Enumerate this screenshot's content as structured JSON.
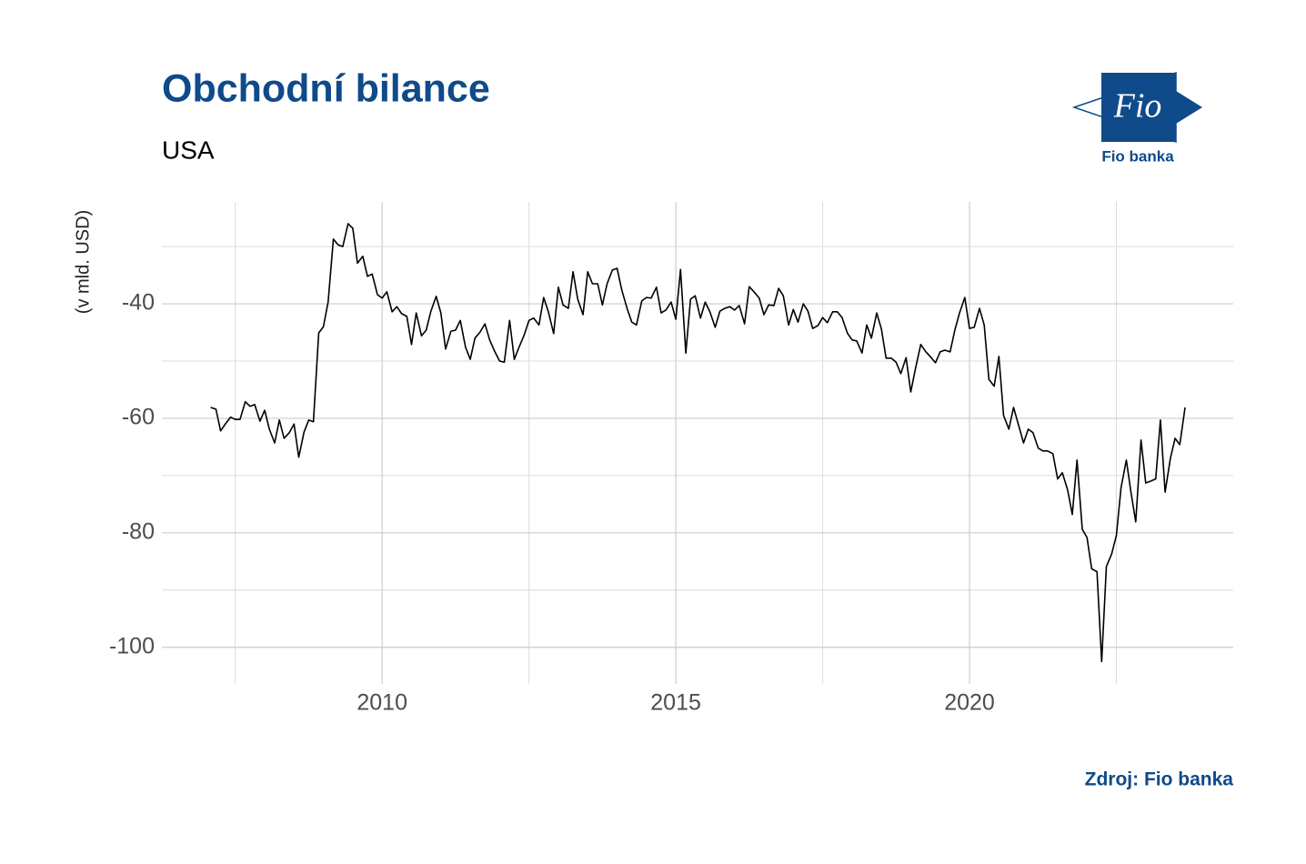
{
  "chart_data": {
    "type": "line",
    "title": "Obchodní bilance",
    "subtitle": "USA",
    "ylabel": "(v mld. USD)",
    "source": "Zdroj: Fio banka",
    "logo": {
      "mark": "Fio",
      "name": "Fio banka"
    },
    "color": "#000000",
    "grid": true,
    "xlim": [
      2006.25,
      2024.49
    ],
    "ylim": [
      -106.4,
      -22.2
    ],
    "xticks": [
      2010,
      2015,
      2020
    ],
    "yticks": [
      -100,
      -80,
      -60,
      -40
    ],
    "x_minor_grid": [
      2007.5,
      2012.5,
      2017.5,
      2022.5
    ],
    "y_minor_grid": [
      -90,
      -70,
      -50,
      -30
    ],
    "x": [
      2007.08,
      2007.17,
      2007.25,
      2007.33,
      2007.42,
      2007.5,
      2007.58,
      2007.67,
      2007.75,
      2007.83,
      2007.92,
      2008.0,
      2008.08,
      2008.17,
      2008.25,
      2008.33,
      2008.42,
      2008.5,
      2008.58,
      2008.67,
      2008.75,
      2008.83,
      2008.92,
      2009.0,
      2009.08,
      2009.17,
      2009.25,
      2009.33,
      2009.42,
      2009.5,
      2009.58,
      2009.67,
      2009.75,
      2009.83,
      2009.92,
      2010.0,
      2010.08,
      2010.17,
      2010.25,
      2010.33,
      2010.42,
      2010.5,
      2010.58,
      2010.67,
      2010.75,
      2010.83,
      2010.92,
      2011.0,
      2011.08,
      2011.17,
      2011.25,
      2011.33,
      2011.42,
      2011.5,
      2011.58,
      2011.67,
      2011.75,
      2011.83,
      2011.92,
      2012.0,
      2012.08,
      2012.17,
      2012.25,
      2012.33,
      2012.42,
      2012.5,
      2012.58,
      2012.67,
      2012.75,
      2012.83,
      2012.92,
      2013.0,
      2013.08,
      2013.17,
      2013.25,
      2013.33,
      2013.42,
      2013.5,
      2013.58,
      2013.67,
      2013.75,
      2013.83,
      2013.92,
      2014.0,
      2014.08,
      2014.17,
      2014.25,
      2014.33,
      2014.42,
      2014.5,
      2014.58,
      2014.67,
      2014.75,
      2014.83,
      2014.92,
      2015.0,
      2015.08,
      2015.17,
      2015.25,
      2015.33,
      2015.42,
      2015.5,
      2015.58,
      2015.67,
      2015.75,
      2015.83,
      2015.92,
      2016.0,
      2016.08,
      2016.17,
      2016.25,
      2016.33,
      2016.42,
      2016.5,
      2016.58,
      2016.67,
      2016.75,
      2016.83,
      2016.92,
      2017.0,
      2017.08,
      2017.17,
      2017.25,
      2017.33,
      2017.42,
      2017.5,
      2017.58,
      2017.67,
      2017.75,
      2017.83,
      2017.92,
      2018.0,
      2018.08,
      2018.17,
      2018.25,
      2018.33,
      2018.42,
      2018.5,
      2018.58,
      2018.67,
      2018.75,
      2018.83,
      2018.92,
      2019.0,
      2019.08,
      2019.17,
      2019.25,
      2019.33,
      2019.42,
      2019.5,
      2019.58,
      2019.67,
      2019.75,
      2019.83,
      2019.92,
      2020.0,
      2020.08,
      2020.17,
      2020.25,
      2020.33,
      2020.42,
      2020.5,
      2020.58,
      2020.67,
      2020.75,
      2020.83,
      2020.92,
      2021.0,
      2021.08,
      2021.17,
      2021.25,
      2021.33,
      2021.42,
      2021.5,
      2021.58,
      2021.67,
      2021.75,
      2021.83,
      2021.92,
      2022.0,
      2022.08,
      2022.17,
      2022.25,
      2022.33,
      2022.42,
      2022.5,
      2022.58,
      2022.67,
      2022.75,
      2022.83,
      2022.92,
      2023.0,
      2023.08,
      2023.17,
      2023.25,
      2023.33,
      2023.42,
      2023.5,
      2023.58,
      2023.67
    ],
    "values": [
      -58.1,
      -58.4,
      -62.2,
      -61.0,
      -59.8,
      -60.2,
      -60.2,
      -57.1,
      -57.9,
      -57.6,
      -60.5,
      -58.6,
      -61.9,
      -64.3,
      -60.3,
      -63.5,
      -62.5,
      -61.0,
      -66.8,
      -62.4,
      -60.3,
      -60.6,
      -45.1,
      -44.0,
      -39.7,
      -28.7,
      -29.7,
      -30.0,
      -26.0,
      -26.8,
      -32.9,
      -31.7,
      -35.2,
      -34.8,
      -38.4,
      -39.0,
      -37.9,
      -41.4,
      -40.5,
      -41.7,
      -42.2,
      -47.1,
      -41.6,
      -45.6,
      -44.6,
      -41.3,
      -38.7,
      -41.6,
      -47.9,
      -44.8,
      -44.6,
      -42.9,
      -47.6,
      -49.7,
      -46.0,
      -44.9,
      -43.5,
      -46.3,
      -48.4,
      -50.0,
      -50.2,
      -42.9,
      -49.7,
      -47.6,
      -45.4,
      -42.9,
      -42.5,
      -43.7,
      -38.9,
      -41.4,
      -45.2,
      -37.1,
      -40.2,
      -40.8,
      -34.4,
      -39.2,
      -41.9,
      -34.4,
      -36.5,
      -36.5,
      -40.2,
      -36.5,
      -34.1,
      -33.8,
      -37.6,
      -40.8,
      -43.2,
      -43.7,
      -39.5,
      -38.9,
      -39.0,
      -37.1,
      -41.6,
      -41.1,
      -39.7,
      -42.7,
      -34.0,
      -48.6,
      -39.2,
      -38.6,
      -42.5,
      -39.7,
      -41.4,
      -44.1,
      -41.3,
      -40.8,
      -40.5,
      -41.1,
      -40.3,
      -43.5,
      -37.0,
      -37.9,
      -39.0,
      -41.9,
      -40.2,
      -40.3,
      -37.3,
      -38.6,
      -43.7,
      -41.0,
      -43.2,
      -40.0,
      -41.3,
      -44.3,
      -43.8,
      -42.4,
      -43.3,
      -41.4,
      -41.4,
      -42.4,
      -45.1,
      -46.3,
      -46.5,
      -48.6,
      -43.7,
      -46.0,
      -41.6,
      -44.4,
      -49.5,
      -49.5,
      -50.2,
      -52.2,
      -49.4,
      -55.4,
      -51.3,
      -47.1,
      -48.3,
      -49.2,
      -50.3,
      -48.4,
      -48.1,
      -48.4,
      -44.6,
      -41.6,
      -38.9,
      -44.3,
      -44.1,
      -40.8,
      -43.7,
      -53.2,
      -54.4,
      -49.2,
      -59.5,
      -61.9,
      -58.1,
      -61.0,
      -64.3,
      -61.9,
      -62.5,
      -65.2,
      -65.7,
      -65.7,
      -66.2,
      -70.6,
      -69.5,
      -72.5,
      -76.8,
      -67.3,
      -79.4,
      -80.8,
      -86.3,
      -86.8,
      -102.5,
      -85.9,
      -83.7,
      -80.5,
      -72.1,
      -67.3,
      -73.0,
      -78.1,
      -63.8,
      -71.3,
      -71.0,
      -70.6,
      -60.3,
      -72.9,
      -67.0,
      -63.5,
      -64.6,
      -58.1
    ]
  }
}
